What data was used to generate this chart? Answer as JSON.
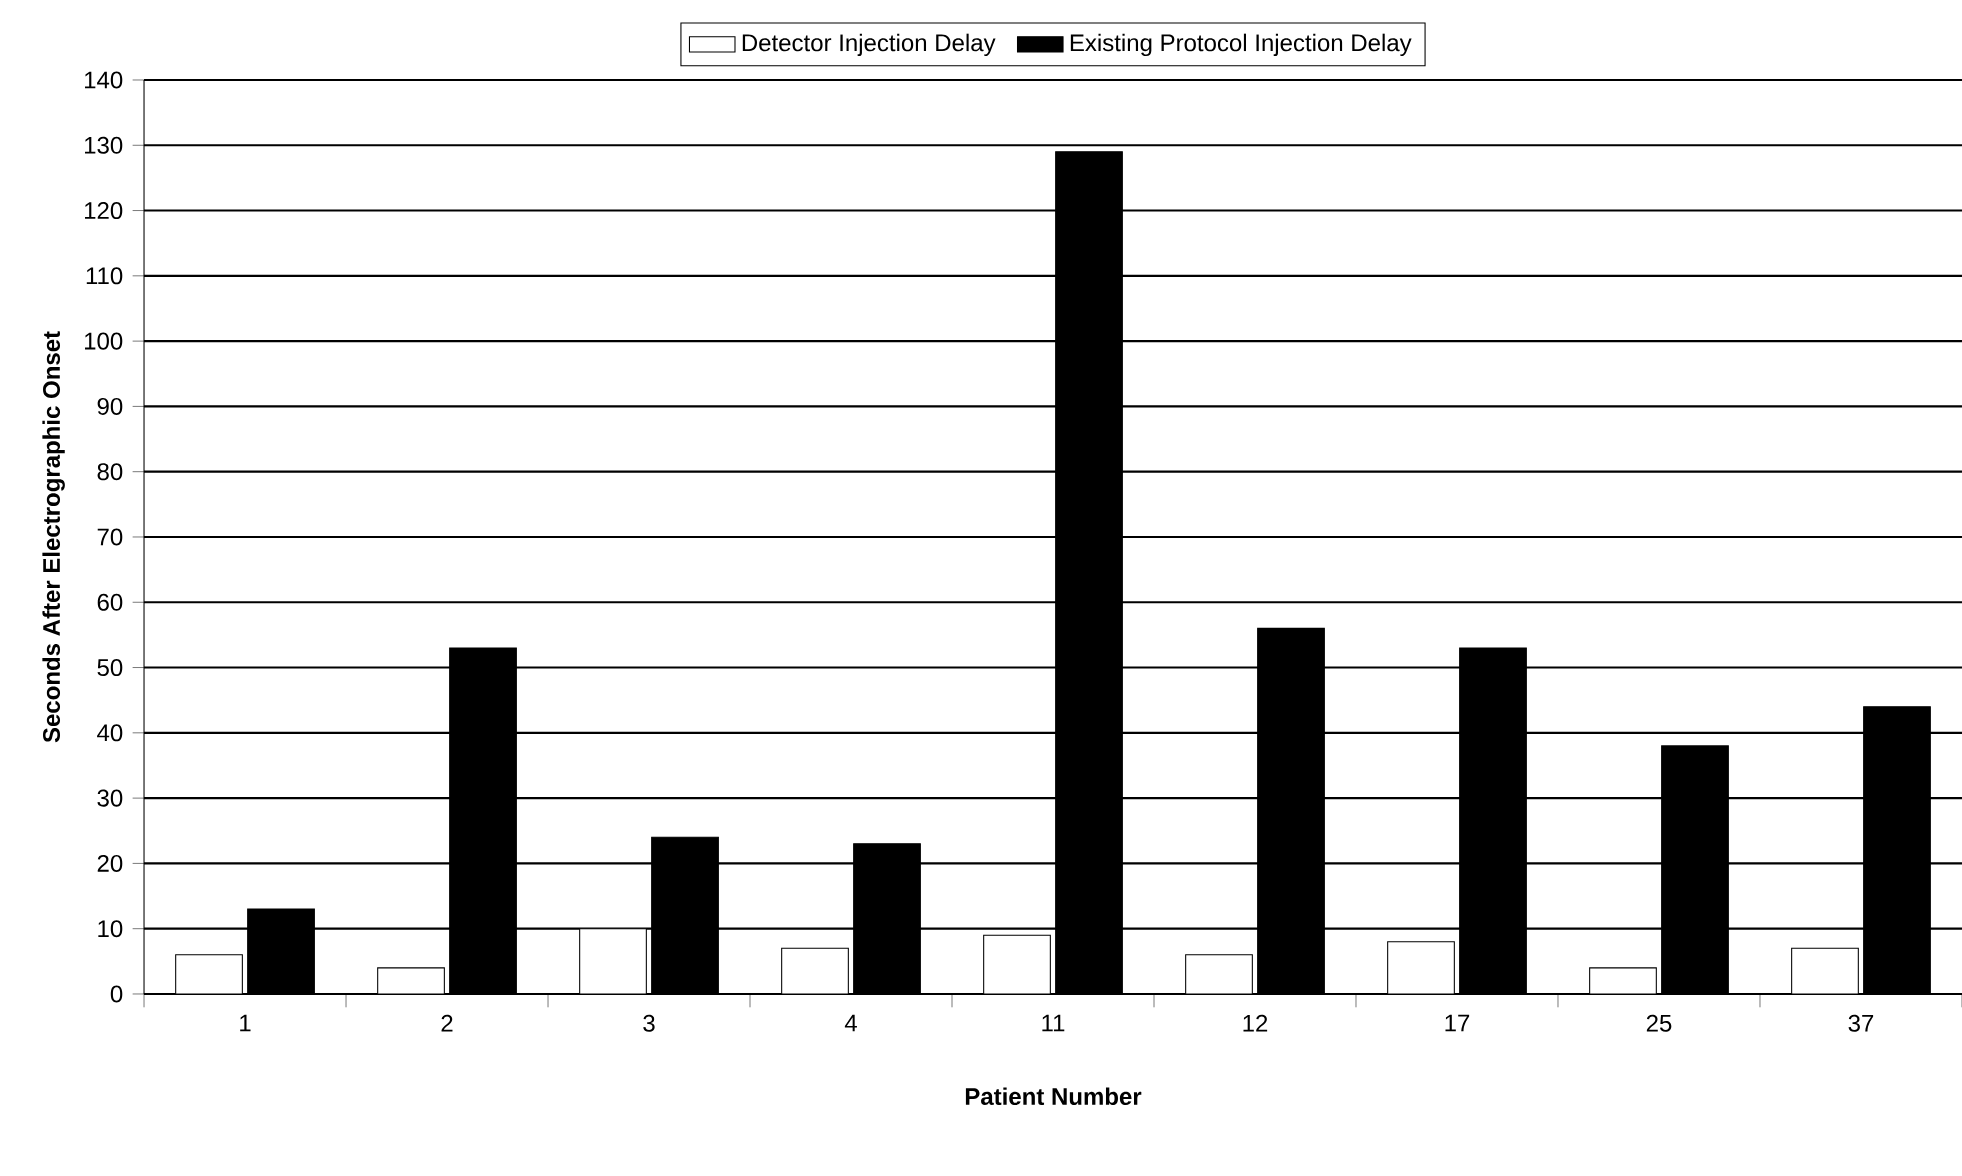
{
  "chart_data": {
    "type": "bar",
    "xlabel": "Patient Number",
    "ylabel": "Seconds After Electrographic Onset",
    "categories": [
      "1",
      "2",
      "3",
      "4",
      "11",
      "12",
      "17",
      "25",
      "37"
    ],
    "series": [
      {
        "name": "Detector Injection Delay",
        "color": "#ffffff",
        "values": [
          6,
          4,
          10,
          7,
          9,
          6,
          8,
          4,
          7
        ]
      },
      {
        "name": "Existing Protocol Injection Delay",
        "color": "#000000",
        "values": [
          13,
          53,
          24,
          23,
          129,
          56,
          53,
          38,
          44
        ]
      }
    ],
    "ylim": [
      0,
      140
    ],
    "yticks": [
      0,
      10,
      20,
      30,
      40,
      50,
      60,
      70,
      80,
      90,
      100,
      110,
      120,
      130,
      140
    ],
    "grid": "y",
    "legend": "top"
  }
}
